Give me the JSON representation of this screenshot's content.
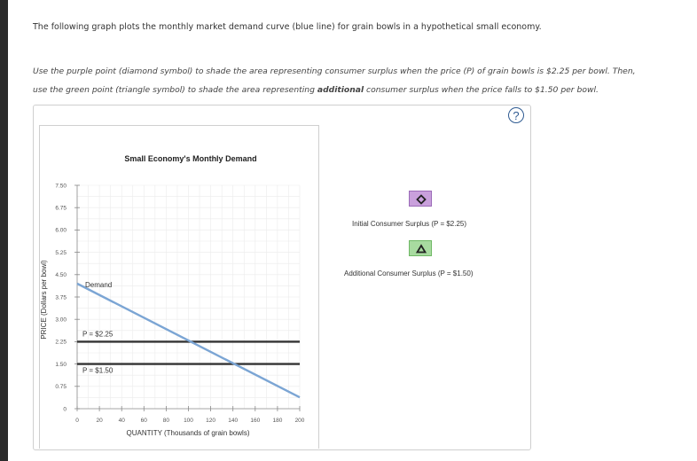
{
  "intro_text": "The following graph plots the monthly market demand curve (blue line) for grain bowls in a hypothetical small economy.",
  "instructions": {
    "line1": "Use the purple point (diamond symbol) to shade the area representing consumer surplus when the price (P) of grain bowls is $2.25 per bowl. Then,",
    "line2_part1": "use the green point (triangle symbol) to shade the area representing ",
    "line2_bold": "additional",
    "line2_part2": " consumer surplus when the price falls to $1.50 per bowl."
  },
  "help_icon_label": "?",
  "legend": [
    {
      "label": "Initial Consumer Surplus (P = $2.25)",
      "symbol": "diamond-icon",
      "fill": "#c9a0dc",
      "border": "#9b6bb8",
      "symbol_color": "#222222"
    },
    {
      "label": "Additional Consumer Surplus (P = $1.50)",
      "symbol": "triangle-icon",
      "fill": "#a8dba0",
      "border": "#6fb865",
      "symbol_color": "#222222"
    }
  ],
  "colors": {
    "demand": "#7ba5d4",
    "price_lines": "#333333",
    "grid": "#ebebeb",
    "axis": "#888888"
  },
  "chart_data": {
    "type": "line",
    "title": "Small Economy's Monthly Demand",
    "xlabel": "QUANTITY (Thousands of grain bowls)",
    "ylabel": "PRICE (Dollars per bowl)",
    "xlim": [
      0,
      200
    ],
    "ylim": [
      0,
      7.5
    ],
    "x_ticks": [
      0,
      20,
      40,
      60,
      80,
      100,
      120,
      140,
      160,
      180,
      200
    ],
    "y_ticks": [
      0,
      0.75,
      1.5,
      2.25,
      3.0,
      3.75,
      4.5,
      5.25,
      6.0,
      6.75,
      7.5
    ],
    "y_tick_labels": [
      "0",
      "0.75",
      "1.50",
      "2.25",
      "3.00",
      "3.75",
      "4.50",
      "5.25",
      "6.00",
      "6.75",
      "7.50"
    ],
    "grid": true,
    "series": [
      {
        "name": "Demand",
        "x": [
          0,
          200
        ],
        "y": [
          4.2,
          0.38
        ]
      }
    ],
    "horizontal_lines": [
      {
        "label": "P = $2.25",
        "y": 2.25
      },
      {
        "label": "P = $1.50",
        "y": 1.5
      }
    ]
  }
}
